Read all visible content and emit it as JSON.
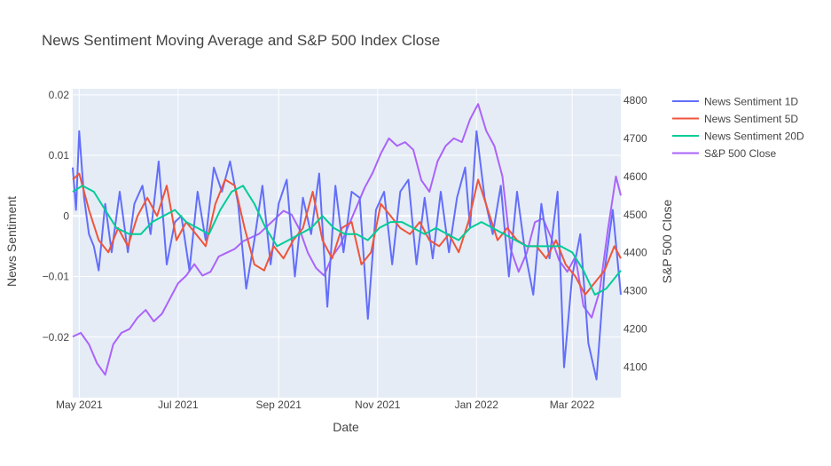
{
  "chart_data": {
    "type": "line",
    "title": "News Sentiment Moving Average and S&P 500 Index Close",
    "xlabel": "Date",
    "ylabel_left": "News Sentiment",
    "ylabel_right": "S&P 500 Close",
    "x_range": [
      "2021-04-27",
      "2022-03-31"
    ],
    "x_ticks": [
      {
        "date": "2021-05-01",
        "label": "May 2021"
      },
      {
        "date": "2021-07-01",
        "label": "Jul 2021"
      },
      {
        "date": "2021-09-01",
        "label": "Sep 2021"
      },
      {
        "date": "2021-11-01",
        "label": "Nov 2021"
      },
      {
        "date": "2022-01-01",
        "label": "Jan 2022"
      },
      {
        "date": "2022-03-01",
        "label": "Mar 2022"
      }
    ],
    "y_left_range": [
      -0.03,
      0.021
    ],
    "y_left_ticks": [
      {
        "value": 0.02,
        "label": "0.02"
      },
      {
        "value": 0.01,
        "label": "0.01"
      },
      {
        "value": 0,
        "label": "0"
      },
      {
        "value": -0.01,
        "label": "−0.01"
      },
      {
        "value": -0.02,
        "label": "−0.02"
      }
    ],
    "y_right_range": [
      4020,
      4830
    ],
    "y_right_ticks": [
      {
        "value": 4800,
        "label": "4800"
      },
      {
        "value": 4700,
        "label": "4700"
      },
      {
        "value": 4600,
        "label": "4600"
      },
      {
        "value": 4500,
        "label": "4500"
      },
      {
        "value": 4400,
        "label": "4400"
      },
      {
        "value": 4300,
        "label": "4300"
      },
      {
        "value": 4200,
        "label": "4200"
      },
      {
        "value": 4100,
        "label": "4100"
      }
    ],
    "grid": true,
    "legend_position": "top-right, outside plot",
    "colors": {
      "plot_bg": "#e5ecf6",
      "grid": "#ffffff",
      "text": "#444444",
      "title": "#444444"
    },
    "series": [
      {
        "name": "News Sentiment 1D",
        "axis": "left",
        "color": "#636efa",
        "x": [
          "2021-04-27",
          "2021-04-29",
          "2021-05-01",
          "2021-05-04",
          "2021-05-07",
          "2021-05-10",
          "2021-05-13",
          "2021-05-17",
          "2021-05-21",
          "2021-05-26",
          "2021-05-31",
          "2021-06-04",
          "2021-06-09",
          "2021-06-14",
          "2021-06-19",
          "2021-06-24",
          "2021-06-29",
          "2021-07-03",
          "2021-07-08",
          "2021-07-13",
          "2021-07-18",
          "2021-07-23",
          "2021-07-28",
          "2021-08-02",
          "2021-08-07",
          "2021-08-12",
          "2021-08-17",
          "2021-08-22",
          "2021-08-27",
          "2021-09-01",
          "2021-09-06",
          "2021-09-11",
          "2021-09-16",
          "2021-09-21",
          "2021-09-26",
          "2021-10-01",
          "2021-10-06",
          "2021-10-11",
          "2021-10-16",
          "2021-10-21",
          "2021-10-26",
          "2021-10-31",
          "2021-11-05",
          "2021-11-10",
          "2021-11-15",
          "2021-11-20",
          "2021-11-25",
          "2021-11-30",
          "2021-12-05",
          "2021-12-10",
          "2021-12-15",
          "2021-12-20",
          "2021-12-25",
          "2021-12-28",
          "2022-01-01",
          "2022-01-06",
          "2022-01-11",
          "2022-01-16",
          "2022-01-21",
          "2022-01-26",
          "2022-01-31",
          "2022-02-05",
          "2022-02-10",
          "2022-02-15",
          "2022-02-20",
          "2022-02-24",
          "2022-03-01",
          "2022-03-06",
          "2022-03-11",
          "2022-03-16",
          "2022-03-21",
          "2022-03-26",
          "2022-03-31"
        ],
        "values": [
          0.008,
          0.001,
          0.014,
          0.003,
          -0.003,
          -0.005,
          -0.009,
          0.002,
          -0.006,
          0.004,
          -0.006,
          0.002,
          0.005,
          -0.003,
          0.009,
          -0.008,
          -0.001,
          0.0,
          -0.009,
          0.004,
          -0.004,
          0.008,
          0.004,
          0.009,
          0.002,
          -0.012,
          -0.004,
          0.005,
          -0.008,
          0.002,
          0.006,
          -0.01,
          0.003,
          -0.003,
          0.007,
          -0.015,
          0.005,
          -0.006,
          0.004,
          0.003,
          -0.017,
          0.001,
          0.004,
          -0.008,
          0.004,
          0.006,
          -0.008,
          0.003,
          -0.007,
          0.004,
          -0.006,
          0.003,
          0.008,
          -0.002,
          0.014,
          0.003,
          -0.003,
          0.005,
          -0.01,
          0.004,
          -0.006,
          -0.013,
          0.002,
          -0.007,
          0.004,
          -0.025,
          -0.01,
          -0.003,
          -0.021,
          -0.027,
          -0.009,
          0.001,
          -0.013
        ]
      },
      {
        "name": "News Sentiment 5D",
        "axis": "left",
        "color": "#ef553b",
        "x": [
          "2021-04-27",
          "2021-05-01",
          "2021-05-07",
          "2021-05-13",
          "2021-05-19",
          "2021-05-25",
          "2021-05-31",
          "2021-06-06",
          "2021-06-12",
          "2021-06-18",
          "2021-06-24",
          "2021-06-30",
          "2021-07-06",
          "2021-07-12",
          "2021-07-18",
          "2021-07-24",
          "2021-07-30",
          "2021-08-05",
          "2021-08-11",
          "2021-08-17",
          "2021-08-23",
          "2021-08-29",
          "2021-09-04",
          "2021-09-10",
          "2021-09-16",
          "2021-09-22",
          "2021-09-28",
          "2021-10-04",
          "2021-10-10",
          "2021-10-16",
          "2021-10-22",
          "2021-10-28",
          "2021-11-03",
          "2021-11-09",
          "2021-11-15",
          "2021-11-21",
          "2021-11-27",
          "2021-12-03",
          "2021-12-09",
          "2021-12-15",
          "2021-12-21",
          "2021-12-27",
          "2022-01-02",
          "2022-01-08",
          "2022-01-14",
          "2022-01-20",
          "2022-01-26",
          "2022-02-01",
          "2022-02-07",
          "2022-02-13",
          "2022-02-19",
          "2022-02-25",
          "2022-03-03",
          "2022-03-09",
          "2022-03-15",
          "2022-03-21",
          "2022-03-27",
          "2022-03-31"
        ],
        "values": [
          0.006,
          0.007,
          0.001,
          -0.004,
          -0.006,
          -0.002,
          -0.005,
          0.0,
          0.003,
          0.0,
          0.005,
          -0.004,
          -0.001,
          -0.003,
          -0.005,
          0.002,
          0.006,
          0.005,
          -0.002,
          -0.008,
          -0.009,
          -0.005,
          -0.007,
          -0.004,
          -0.002,
          0.004,
          -0.004,
          -0.007,
          -0.002,
          -0.001,
          -0.008,
          -0.006,
          0.002,
          0.0,
          -0.002,
          -0.003,
          -0.001,
          -0.004,
          -0.005,
          -0.003,
          -0.006,
          -0.001,
          0.006,
          0.001,
          -0.004,
          -0.002,
          -0.004,
          -0.005,
          -0.005,
          -0.007,
          -0.004,
          -0.008,
          -0.01,
          -0.013,
          -0.011,
          -0.009,
          -0.005,
          -0.007
        ]
      },
      {
        "name": "News Sentiment 20D",
        "axis": "left",
        "color": "#00cc96",
        "x": [
          "2021-04-27",
          "2021-05-03",
          "2021-05-10",
          "2021-05-17",
          "2021-05-24",
          "2021-06-01",
          "2021-06-08",
          "2021-06-15",
          "2021-06-22",
          "2021-06-29",
          "2021-07-06",
          "2021-07-13",
          "2021-07-20",
          "2021-07-27",
          "2021-08-03",
          "2021-08-10",
          "2021-08-17",
          "2021-08-24",
          "2021-08-31",
          "2021-09-07",
          "2021-09-14",
          "2021-09-21",
          "2021-09-28",
          "2021-10-05",
          "2021-10-12",
          "2021-10-19",
          "2021-10-26",
          "2021-11-02",
          "2021-11-09",
          "2021-11-16",
          "2021-11-23",
          "2021-11-30",
          "2021-12-07",
          "2021-12-14",
          "2021-12-21",
          "2021-12-28",
          "2022-01-04",
          "2022-01-11",
          "2022-01-18",
          "2022-01-25",
          "2022-02-01",
          "2022-02-08",
          "2022-02-15",
          "2022-02-22",
          "2022-03-01",
          "2022-03-08",
          "2022-03-15",
          "2022-03-22",
          "2022-03-31"
        ],
        "values": [
          0.004,
          0.005,
          0.004,
          0.001,
          -0.002,
          -0.003,
          -0.003,
          -0.001,
          0.0,
          0.001,
          -0.001,
          -0.002,
          -0.003,
          0.001,
          0.004,
          0.005,
          0.002,
          -0.002,
          -0.005,
          -0.004,
          -0.003,
          -0.002,
          0.0,
          -0.002,
          -0.003,
          -0.003,
          -0.004,
          -0.002,
          -0.001,
          -0.001,
          -0.002,
          -0.003,
          -0.002,
          -0.003,
          -0.004,
          -0.002,
          -0.001,
          -0.002,
          -0.003,
          -0.004,
          -0.005,
          -0.005,
          -0.005,
          -0.005,
          -0.006,
          -0.009,
          -0.013,
          -0.012,
          -0.009
        ]
      },
      {
        "name": "S&P 500 Close",
        "axis": "right",
        "color": "#ab63fa",
        "x": [
          "2021-04-27",
          "2021-05-02",
          "2021-05-07",
          "2021-05-12",
          "2021-05-17",
          "2021-05-22",
          "2021-05-27",
          "2021-06-01",
          "2021-06-06",
          "2021-06-11",
          "2021-06-16",
          "2021-06-21",
          "2021-06-26",
          "2021-07-01",
          "2021-07-06",
          "2021-07-11",
          "2021-07-16",
          "2021-07-21",
          "2021-07-26",
          "2021-07-31",
          "2021-08-05",
          "2021-08-10",
          "2021-08-15",
          "2021-08-20",
          "2021-08-25",
          "2021-08-30",
          "2021-09-04",
          "2021-09-09",
          "2021-09-14",
          "2021-09-19",
          "2021-09-24",
          "2021-09-29",
          "2021-10-04",
          "2021-10-09",
          "2021-10-14",
          "2021-10-19",
          "2021-10-24",
          "2021-10-29",
          "2021-11-03",
          "2021-11-08",
          "2021-11-13",
          "2021-11-18",
          "2021-11-23",
          "2021-11-28",
          "2021-12-03",
          "2021-12-08",
          "2021-12-13",
          "2021-12-18",
          "2021-12-23",
          "2021-12-28",
          "2022-01-02",
          "2022-01-07",
          "2022-01-12",
          "2022-01-17",
          "2022-01-22",
          "2022-01-27",
          "2022-02-01",
          "2022-02-06",
          "2022-02-11",
          "2022-02-16",
          "2022-02-21",
          "2022-02-26",
          "2022-03-03",
          "2022-03-08",
          "2022-03-13",
          "2022-03-18",
          "2022-03-23",
          "2022-03-28",
          "2022-03-31"
        ],
        "values": [
          4180,
          4190,
          4160,
          4110,
          4080,
          4160,
          4190,
          4200,
          4230,
          4250,
          4220,
          4240,
          4280,
          4320,
          4340,
          4370,
          4340,
          4350,
          4390,
          4400,
          4410,
          4430,
          4440,
          4450,
          4470,
          4490,
          4510,
          4500,
          4460,
          4400,
          4360,
          4340,
          4390,
          4420,
          4470,
          4520,
          4570,
          4610,
          4660,
          4700,
          4680,
          4690,
          4670,
          4590,
          4560,
          4640,
          4680,
          4700,
          4690,
          4750,
          4790,
          4720,
          4680,
          4600,
          4410,
          4350,
          4400,
          4480,
          4490,
          4440,
          4380,
          4350,
          4390,
          4260,
          4230,
          4300,
          4460,
          4600,
          4550
        ]
      }
    ]
  }
}
